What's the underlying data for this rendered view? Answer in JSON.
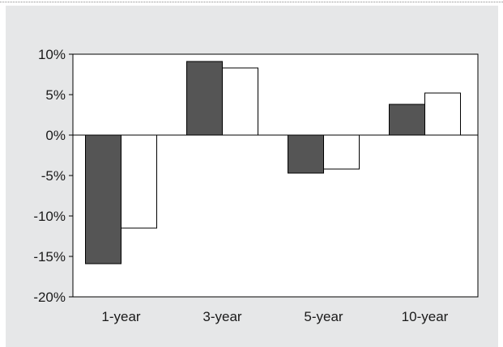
{
  "chart_data": {
    "type": "bar",
    "categories": [
      "1-year",
      "3-year",
      "5-year",
      "10-year"
    ],
    "series": [
      {
        "values": [
          -15.9,
          9.1,
          -4.7,
          3.8
        ],
        "color": "#555555"
      },
      {
        "values": [
          -11.5,
          8.3,
          -4.2,
          5.2
        ],
        "color": "#ffffff"
      }
    ],
    "ylim": [
      -20,
      10
    ],
    "yticks": [
      10,
      5,
      0,
      -5,
      -10,
      -15,
      -20
    ],
    "ytick_labels": [
      "10%",
      "5%",
      "0%",
      "-5%",
      "-10%",
      "-15%",
      "-20%"
    ],
    "title": "",
    "xlabel": "",
    "ylabel": "",
    "grid": false,
    "background_color": "#e6e7e8",
    "plot_background_color": "#ffffff"
  }
}
